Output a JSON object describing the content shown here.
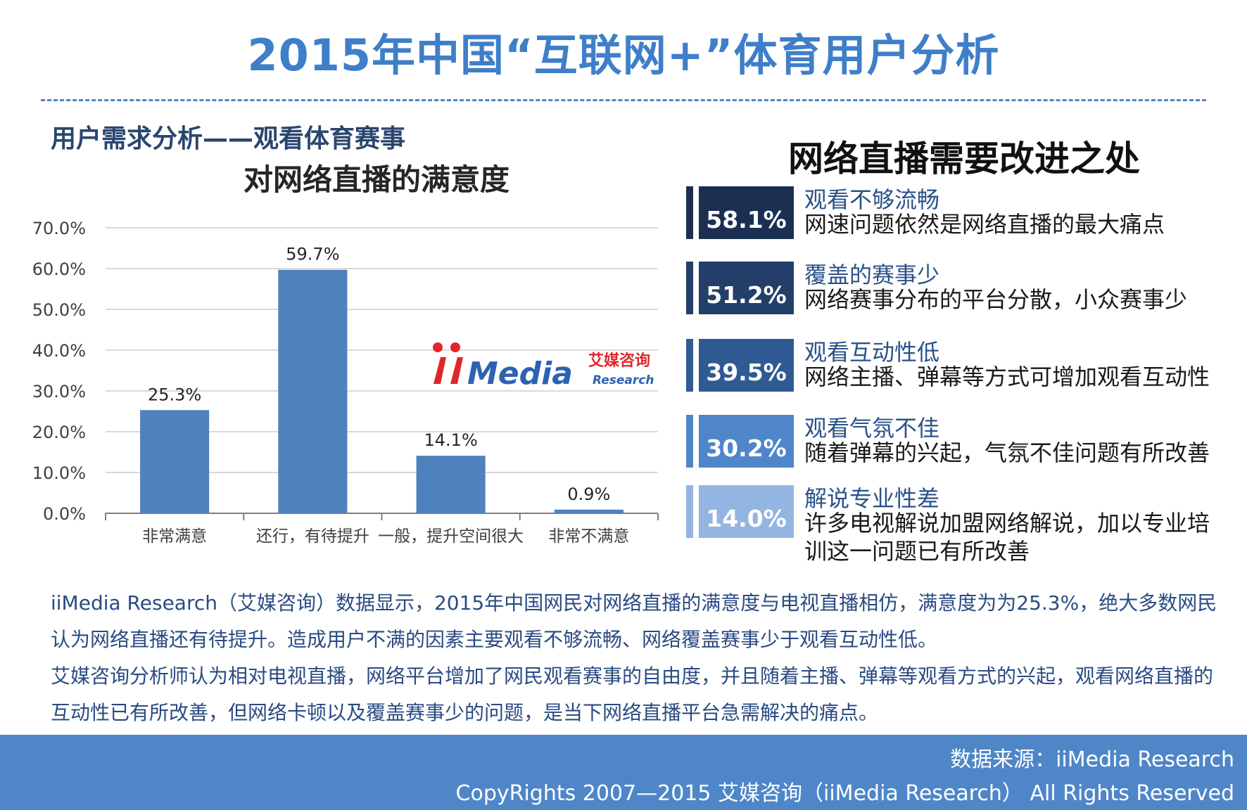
{
  "header": {
    "title": "2015年中国“互联网+”体育用户分析",
    "section_subtitle": "用户需求分析——观看体育赛事"
  },
  "chart_data": {
    "type": "bar",
    "title": "对网络直播的满意度",
    "categories": [
      "非常满意",
      "还行，有待提升",
      "一般，提升空间很大",
      "非常不满意"
    ],
    "values": [
      25.3,
      59.7,
      14.1,
      0.9
    ],
    "value_labels": [
      "25.3%",
      "59.7%",
      "14.1%",
      "0.9%"
    ],
    "yticks": [
      "0.0%",
      "10.0%",
      "20.0%",
      "30.0%",
      "40.0%",
      "50.0%",
      "60.0%",
      "70.0%"
    ],
    "ylim": [
      0,
      70
    ],
    "grid": true,
    "bar_color": "#4f81bd"
  },
  "logo": {
    "brand": "iiMedia",
    "cn": "艾媒咨询",
    "en": "Research"
  },
  "improvements": {
    "title": "网络直播需要改进之处",
    "items": [
      {
        "pct": "58.1%",
        "head": "观看不够流畅",
        "desc": "网速问题依然是网络直播的最大痛点",
        "color": "#1b2f52"
      },
      {
        "pct": "51.2%",
        "head": "覆盖的赛事少",
        "desc": "网络赛事分布的平台分散，小众赛事少",
        "color": "#233e68"
      },
      {
        "pct": "39.5%",
        "head": "观看互动性低",
        "desc": "网络主播、弹幕等方式可增加观看互动性",
        "color": "#2f5a93"
      },
      {
        "pct": "30.2%",
        "head": "观看气氛不佳",
        "desc": "随着弹幕的兴起，气氛不佳问题有所改善",
        "color": "#4f86c9"
      },
      {
        "pct": "14.0%",
        "head": "解说专业性差",
        "desc": "许多电视解说加盟网络解说，加以专业培训这一问题已有所改善",
        "color": "#93b5e1"
      }
    ]
  },
  "summary": {
    "p1": "iiMedia Research（艾媒咨询）数据显示，2015年中国网民对网络直播的满意度与电视直播相仿，满意度为为25.3%，绝大多数网民认为网络直播还有待提升。造成用户不满的因素主要观看不够流畅、网络覆盖赛事少于观看互动性低。",
    "p2": "艾媒咨询分析师认为相对电视直播，网络平台增加了网民观看赛事的自由度，并且随着主播、弹幕等观看方式的兴起，观看网络直播的互动性已有所改善，但网络卡顿以及覆盖赛事少的问题，是当下网络直播平台急需解决的痛点。"
  },
  "footer": {
    "source": "数据来源：iiMedia Research",
    "copyright": "CopyRights 2007—2015 艾媒咨询（iiMedia Research） All Rights Reserved"
  }
}
